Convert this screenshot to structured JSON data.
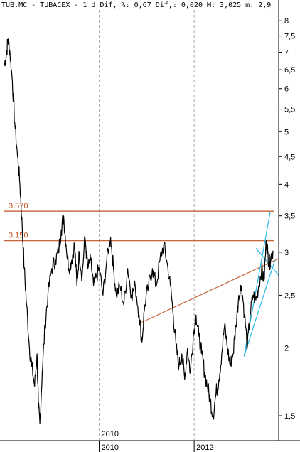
{
  "chart_data": {
    "type": "line",
    "header": "TUB.MC - TUBACEX - 1 d Dif, %: 0,67 Dif,: 0,020 M: 3,025 m: 2,9",
    "y_scale": "log",
    "ylim": [
      1.35,
      8.3
    ],
    "y_ticks": [
      {
        "v": 8,
        "label": "8"
      },
      {
        "v": 7.5,
        "label": "7,5"
      },
      {
        "v": 7,
        "label": "7"
      },
      {
        "v": 6.5,
        "label": "6,5"
      },
      {
        "v": 6,
        "label": "6"
      },
      {
        "v": 5.5,
        "label": "5,5"
      },
      {
        "v": 5,
        "label": "5"
      },
      {
        "v": 4.5,
        "label": "4,5"
      },
      {
        "v": 4,
        "label": "4"
      },
      {
        "v": 3.5,
        "label": "3,5"
      },
      {
        "v": 3,
        "label": "3"
      },
      {
        "v": 2.5,
        "label": "2,5"
      },
      {
        "v": 2,
        "label": "2"
      },
      {
        "v": 1.5,
        "label": "1,5"
      }
    ],
    "xlim": [
      2008.0,
      2013.78
    ],
    "x_ticks": [
      {
        "v": 2010.0,
        "label": "2010"
      },
      {
        "v": 2012.0,
        "label": "2012"
      }
    ],
    "x_label_top": "2010",
    "series": [
      {
        "points": [
          [
            2008.0,
            6.6
          ],
          [
            2008.05,
            7.0
          ],
          [
            2008.08,
            7.4
          ],
          [
            2008.12,
            7.0
          ],
          [
            2008.17,
            6.2
          ],
          [
            2008.22,
            5.2
          ],
          [
            2008.28,
            4.5
          ],
          [
            2008.33,
            4.0
          ],
          [
            2008.38,
            3.3
          ],
          [
            2008.42,
            2.8
          ],
          [
            2008.47,
            2.4
          ],
          [
            2008.53,
            2.0
          ],
          [
            2008.58,
            1.85
          ],
          [
            2008.64,
            1.7
          ],
          [
            2008.69,
            1.95
          ],
          [
            2008.72,
            1.55
          ],
          [
            2008.75,
            1.45
          ],
          [
            2008.8,
            1.8
          ],
          [
            2008.86,
            2.2
          ],
          [
            2008.92,
            2.5
          ],
          [
            2009.0,
            2.8
          ],
          [
            2009.08,
            2.9
          ],
          [
            2009.14,
            3.0
          ],
          [
            2009.2,
            3.3
          ],
          [
            2009.25,
            3.5
          ],
          [
            2009.3,
            3.1
          ],
          [
            2009.36,
            2.8
          ],
          [
            2009.42,
            2.9
          ],
          [
            2009.48,
            3.1
          ],
          [
            2009.53,
            2.6
          ],
          [
            2009.58,
            3.0
          ],
          [
            2009.64,
            2.7
          ],
          [
            2009.7,
            3.2
          ],
          [
            2009.76,
            2.8
          ],
          [
            2009.82,
            2.9
          ],
          [
            2009.88,
            2.6
          ],
          [
            2009.94,
            2.7
          ],
          [
            2010.0,
            2.8
          ],
          [
            2010.08,
            2.5
          ],
          [
            2010.16,
            2.9
          ],
          [
            2010.24,
            3.2
          ],
          [
            2010.3,
            2.8
          ],
          [
            2010.36,
            2.5
          ],
          [
            2010.44,
            2.6
          ],
          [
            2010.52,
            2.4
          ],
          [
            2010.6,
            2.8
          ],
          [
            2010.68,
            2.5
          ],
          [
            2010.76,
            2.6
          ],
          [
            2010.84,
            2.3
          ],
          [
            2010.9,
            2.05
          ],
          [
            2010.96,
            2.4
          ],
          [
            2011.04,
            2.6
          ],
          [
            2011.12,
            2.8
          ],
          [
            2011.2,
            2.6
          ],
          [
            2011.28,
            2.9
          ],
          [
            2011.36,
            3.1
          ],
          [
            2011.42,
            2.9
          ],
          [
            2011.5,
            2.6
          ],
          [
            2011.56,
            2.3
          ],
          [
            2011.62,
            2.0
          ],
          [
            2011.68,
            1.85
          ],
          [
            2011.74,
            1.95
          ],
          [
            2011.8,
            1.75
          ],
          [
            2011.86,
            2.0
          ],
          [
            2011.92,
            1.8
          ],
          [
            2011.98,
            2.1
          ],
          [
            2012.04,
            2.3
          ],
          [
            2012.1,
            2.1
          ],
          [
            2012.16,
            1.95
          ],
          [
            2012.22,
            1.8
          ],
          [
            2012.28,
            1.7
          ],
          [
            2012.34,
            1.6
          ],
          [
            2012.4,
            1.5
          ],
          [
            2012.46,
            1.65
          ],
          [
            2012.52,
            1.75
          ],
          [
            2012.58,
            1.95
          ],
          [
            2012.64,
            2.2
          ],
          [
            2012.7,
            2.0
          ],
          [
            2012.76,
            1.85
          ],
          [
            2012.82,
            1.95
          ],
          [
            2012.88,
            2.2
          ],
          [
            2012.94,
            2.5
          ],
          [
            2013.0,
            2.6
          ],
          [
            2013.06,
            2.3
          ],
          [
            2013.12,
            2.0
          ],
          [
            2013.18,
            2.3
          ],
          [
            2013.24,
            2.5
          ],
          [
            2013.3,
            2.45
          ],
          [
            2013.36,
            2.6
          ],
          [
            2013.42,
            2.8
          ],
          [
            2013.47,
            2.65
          ],
          [
            2013.52,
            3.15
          ],
          [
            2013.55,
            3.0
          ],
          [
            2013.58,
            2.85
          ],
          [
            2013.62,
            2.95
          ],
          [
            2013.66,
            3.02
          ]
        ]
      }
    ],
    "h_levels": [
      {
        "v": 3.57,
        "label": "3,570",
        "color": "#c0501f"
      },
      {
        "v": 3.15,
        "label": "3,150",
        "color": "#c0501f"
      }
    ],
    "trend_lines": [
      {
        "color": "#c8643c",
        "from": [
          2010.9,
          2.23
        ],
        "to": [
          2013.78,
          2.92
        ]
      },
      {
        "color": "#2ab7e6",
        "from": [
          2013.05,
          1.93
        ],
        "to": [
          2013.6,
          3.55
        ]
      },
      {
        "color": "#2ab7e6",
        "from": [
          2013.05,
          1.93
        ],
        "to": [
          2013.7,
          2.9
        ]
      },
      {
        "color": "#2ab7e6",
        "from": [
          2013.3,
          3.05
        ],
        "to": [
          2013.78,
          2.72
        ]
      }
    ],
    "grid": false,
    "colors": {
      "line": "#000000",
      "axis": "#000000",
      "divider": "#aaaaaa"
    }
  }
}
